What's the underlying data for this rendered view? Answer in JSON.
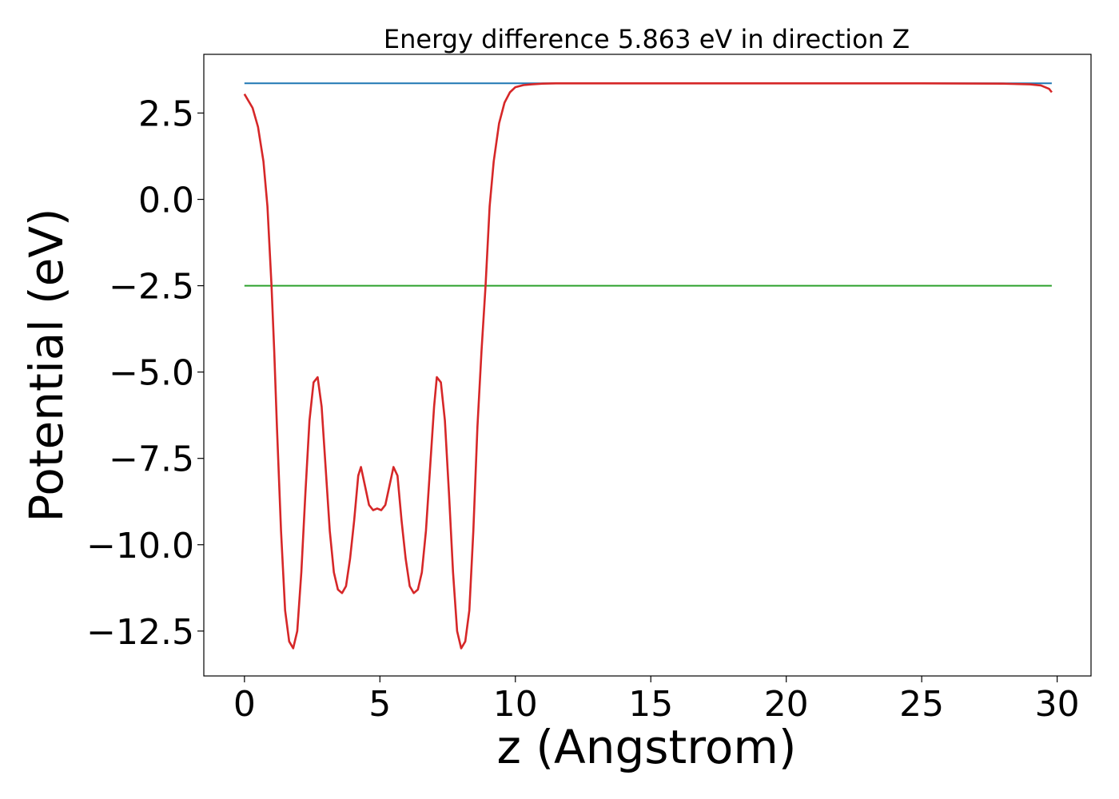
{
  "chart_data": {
    "type": "line",
    "title": "Energy difference 5.863 eV in direction Z",
    "xlabel": "z (Angstrom)",
    "ylabel": "Potential (eV)",
    "xlim": [
      -1.5,
      31.25
    ],
    "ylim": [
      -13.8,
      4.2
    ],
    "xticks": [
      0,
      5,
      10,
      15,
      20,
      25,
      30
    ],
    "xtick_labels": [
      "0",
      "5",
      "10",
      "15",
      "20",
      "25",
      "30"
    ],
    "yticks": [
      2.5,
      0.0,
      -2.5,
      -5.0,
      -7.5,
      -10.0,
      -12.5
    ],
    "ytick_labels": [
      "2.5",
      "0.0",
      "−2.5",
      "−5.0",
      "−7.5",
      "−10.0",
      "−12.5"
    ],
    "grid": false,
    "legend": "none",
    "series": [
      {
        "color": "#d62728",
        "x": [
          0.0,
          0.3,
          0.5,
          0.7,
          0.85,
          1.0,
          1.1,
          1.2,
          1.35,
          1.5,
          1.65,
          1.8,
          1.95,
          2.1,
          2.25,
          2.4,
          2.55,
          2.7,
          2.85,
          3.0,
          3.15,
          3.3,
          3.45,
          3.6,
          3.75,
          3.9,
          4.05,
          4.2,
          4.3,
          4.45,
          4.6,
          4.75,
          4.9,
          5.05,
          5.2,
          5.35,
          5.5,
          5.65,
          5.8,
          5.95,
          6.1,
          6.25,
          6.4,
          6.55,
          6.7,
          6.85,
          7.0,
          7.1,
          7.25,
          7.4,
          7.55,
          7.7,
          7.85,
          8.0,
          8.15,
          8.3,
          8.45,
          8.6,
          8.75,
          8.9,
          9.05,
          9.2,
          9.4,
          9.6,
          9.8,
          10.0,
          10.3,
          10.6,
          11.0,
          11.5,
          12.0,
          13.0,
          15.0,
          20.0,
          25.0,
          28.0,
          29.0,
          29.4,
          29.7,
          29.8
        ],
        "y": [
          3.05,
          2.65,
          2.1,
          1.1,
          -0.2,
          -2.5,
          -4.4,
          -6.6,
          -9.6,
          -11.9,
          -12.8,
          -13.0,
          -12.5,
          -10.8,
          -8.5,
          -6.4,
          -5.3,
          -5.15,
          -6.0,
          -7.8,
          -9.6,
          -10.8,
          -11.3,
          -11.4,
          -11.2,
          -10.4,
          -9.3,
          -8.0,
          -7.75,
          -8.3,
          -8.85,
          -9.0,
          -8.95,
          -9.0,
          -8.85,
          -8.3,
          -7.75,
          -8.0,
          -9.3,
          -10.4,
          -11.2,
          -11.4,
          -11.3,
          -10.8,
          -9.6,
          -7.8,
          -6.0,
          -5.15,
          -5.3,
          -6.4,
          -8.5,
          -10.8,
          -12.5,
          -13.0,
          -12.8,
          -11.9,
          -9.6,
          -6.6,
          -4.4,
          -2.5,
          -0.2,
          1.1,
          2.2,
          2.8,
          3.1,
          3.25,
          3.31,
          3.33,
          3.35,
          3.36,
          3.36,
          3.36,
          3.36,
          3.36,
          3.36,
          3.35,
          3.33,
          3.3,
          3.2,
          3.1
        ]
      },
      {
        "color": "#1f77b4",
        "x": [
          0.0,
          29.8
        ],
        "y": [
          3.36,
          3.36
        ]
      },
      {
        "color": "#2ca02c",
        "x": [
          0.0,
          29.8
        ],
        "y": [
          -2.5,
          -2.5
        ]
      }
    ]
  }
}
